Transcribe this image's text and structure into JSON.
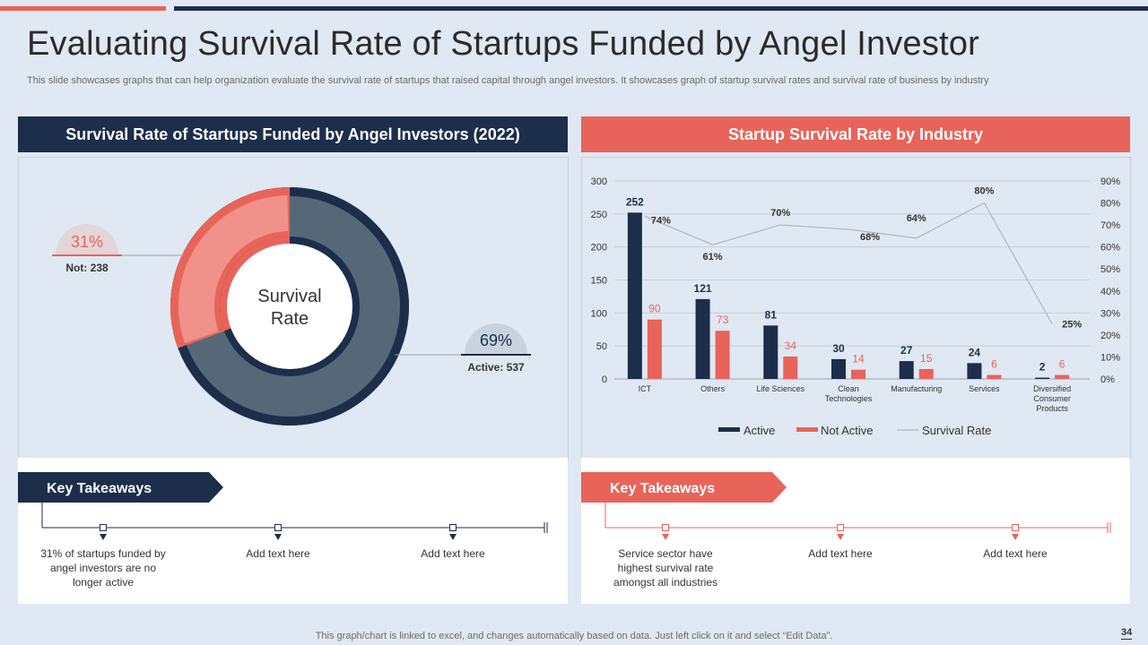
{
  "header": {
    "title": "Evaluating Survival Rate of Startups Funded by Angel Investor",
    "subtitle": "This slide showcases graphs that can help organization evaluate the survival rate of startups that raised capital through angel investors. It showcases graph of startup survival rates and survival rate of business by industry"
  },
  "left_panel": {
    "heading": "Survival Rate of Startups Funded by Angel Investors (2022)",
    "center_label_line1": "Survival",
    "center_label_line2": "Rate",
    "not_active_pct": "31%",
    "not_active_label": "Not: 238",
    "active_pct": "69%",
    "active_label": "Active: 537"
  },
  "right_panel": {
    "heading": "Startup Survival Rate by Industry"
  },
  "chart_data": [
    {
      "type": "pie",
      "title": "Survival Rate of Startups Funded by Angel Investors (2022)",
      "categories": [
        "Active",
        "Not"
      ],
      "values": [
        537,
        238
      ],
      "percent_labels": [
        "69%",
        "31%"
      ],
      "colors": [
        "#566878",
        "#e8645a"
      ]
    },
    {
      "type": "bar",
      "title": "Startup Survival Rate by Industry",
      "categories": [
        "ICT",
        "Others",
        "Life Sciences",
        "Clean Technologies",
        "Manufacturing",
        "Services",
        "Diversified Consumer Products"
      ],
      "category_lines": [
        [
          "ICT"
        ],
        [
          "Others"
        ],
        [
          "Life Sciences"
        ],
        [
          "Clean",
          "Technologies"
        ],
        [
          "Manufacturing"
        ],
        [
          "Services"
        ],
        [
          "Diversified",
          "Consumer",
          "Products"
        ]
      ],
      "series": [
        {
          "name": "Active",
          "values": [
            252,
            121,
            81,
            30,
            27,
            24,
            2
          ],
          "color": "#1c2e4a"
        },
        {
          "name": "Not Active",
          "values": [
            90,
            73,
            34,
            14,
            15,
            6,
            6
          ],
          "color": "#e8645a"
        }
      ],
      "line_series": {
        "name": "Survival Rate",
        "values": [
          74,
          61,
          70,
          68,
          64,
          80,
          25
        ],
        "labels": [
          "74%",
          "61%",
          "70%",
          "68%",
          "64%",
          "80%",
          "25%"
        ],
        "color": "#b0b6bd"
      },
      "ylim": [
        0,
        300
      ],
      "y_ticks": [
        0,
        50,
        100,
        150,
        200,
        250,
        300
      ],
      "y2lim": [
        0,
        90
      ],
      "y2_ticks": [
        "0%",
        "10%",
        "20%",
        "30%",
        "40%",
        "50%",
        "60%",
        "70%",
        "80%",
        "90%"
      ],
      "legend_position": "bottom-center"
    }
  ],
  "takeaways_left": {
    "label": "Key Takeaways",
    "items": [
      "31% of startups funded by angel investors are no longer active",
      "Add text here",
      "Add text here"
    ]
  },
  "takeaways_right": {
    "label": "Key Takeaways",
    "items": [
      "Service  sector have highest survival  rate amongst all industries",
      "Add text here",
      "Add text here"
    ]
  },
  "footer": {
    "note": "This graph/chart is linked to excel,  and changes automatically based on data. Just left click on it and select “Edit Data”.",
    "page_number": "34"
  }
}
